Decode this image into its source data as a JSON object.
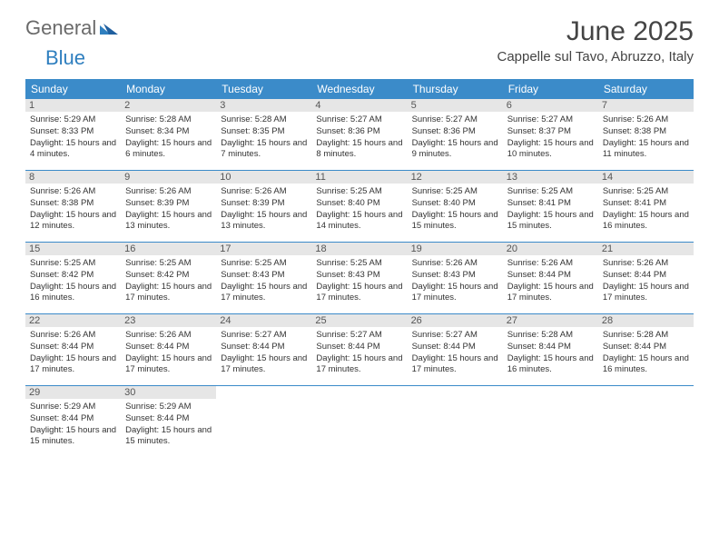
{
  "logo": {
    "text1": "General",
    "text2": "Blue"
  },
  "title": "June 2025",
  "location": "Cappelle sul Tavo, Abruzzo, Italy",
  "colors": {
    "header_bg": "#3b8bc9",
    "header_text": "#ffffff",
    "daynum_bg": "#e6e6e6",
    "week_border": "#3b8bc9",
    "logo_general": "#6a6a6a",
    "logo_blue": "#2f7fbf"
  },
  "day_labels": [
    "Sunday",
    "Monday",
    "Tuesday",
    "Wednesday",
    "Thursday",
    "Friday",
    "Saturday"
  ],
  "weeks": [
    [
      {
        "n": "1",
        "sr": "Sunrise: 5:29 AM",
        "ss": "Sunset: 8:33 PM",
        "dl": "Daylight: 15 hours and 4 minutes."
      },
      {
        "n": "2",
        "sr": "Sunrise: 5:28 AM",
        "ss": "Sunset: 8:34 PM",
        "dl": "Daylight: 15 hours and 6 minutes."
      },
      {
        "n": "3",
        "sr": "Sunrise: 5:28 AM",
        "ss": "Sunset: 8:35 PM",
        "dl": "Daylight: 15 hours and 7 minutes."
      },
      {
        "n": "4",
        "sr": "Sunrise: 5:27 AM",
        "ss": "Sunset: 8:36 PM",
        "dl": "Daylight: 15 hours and 8 minutes."
      },
      {
        "n": "5",
        "sr": "Sunrise: 5:27 AM",
        "ss": "Sunset: 8:36 PM",
        "dl": "Daylight: 15 hours and 9 minutes."
      },
      {
        "n": "6",
        "sr": "Sunrise: 5:27 AM",
        "ss": "Sunset: 8:37 PM",
        "dl": "Daylight: 15 hours and 10 minutes."
      },
      {
        "n": "7",
        "sr": "Sunrise: 5:26 AM",
        "ss": "Sunset: 8:38 PM",
        "dl": "Daylight: 15 hours and 11 minutes."
      }
    ],
    [
      {
        "n": "8",
        "sr": "Sunrise: 5:26 AM",
        "ss": "Sunset: 8:38 PM",
        "dl": "Daylight: 15 hours and 12 minutes."
      },
      {
        "n": "9",
        "sr": "Sunrise: 5:26 AM",
        "ss": "Sunset: 8:39 PM",
        "dl": "Daylight: 15 hours and 13 minutes."
      },
      {
        "n": "10",
        "sr": "Sunrise: 5:26 AM",
        "ss": "Sunset: 8:39 PM",
        "dl": "Daylight: 15 hours and 13 minutes."
      },
      {
        "n": "11",
        "sr": "Sunrise: 5:25 AM",
        "ss": "Sunset: 8:40 PM",
        "dl": "Daylight: 15 hours and 14 minutes."
      },
      {
        "n": "12",
        "sr": "Sunrise: 5:25 AM",
        "ss": "Sunset: 8:40 PM",
        "dl": "Daylight: 15 hours and 15 minutes."
      },
      {
        "n": "13",
        "sr": "Sunrise: 5:25 AM",
        "ss": "Sunset: 8:41 PM",
        "dl": "Daylight: 15 hours and 15 minutes."
      },
      {
        "n": "14",
        "sr": "Sunrise: 5:25 AM",
        "ss": "Sunset: 8:41 PM",
        "dl": "Daylight: 15 hours and 16 minutes."
      }
    ],
    [
      {
        "n": "15",
        "sr": "Sunrise: 5:25 AM",
        "ss": "Sunset: 8:42 PM",
        "dl": "Daylight: 15 hours and 16 minutes."
      },
      {
        "n": "16",
        "sr": "Sunrise: 5:25 AM",
        "ss": "Sunset: 8:42 PM",
        "dl": "Daylight: 15 hours and 17 minutes."
      },
      {
        "n": "17",
        "sr": "Sunrise: 5:25 AM",
        "ss": "Sunset: 8:43 PM",
        "dl": "Daylight: 15 hours and 17 minutes."
      },
      {
        "n": "18",
        "sr": "Sunrise: 5:25 AM",
        "ss": "Sunset: 8:43 PM",
        "dl": "Daylight: 15 hours and 17 minutes."
      },
      {
        "n": "19",
        "sr": "Sunrise: 5:26 AM",
        "ss": "Sunset: 8:43 PM",
        "dl": "Daylight: 15 hours and 17 minutes."
      },
      {
        "n": "20",
        "sr": "Sunrise: 5:26 AM",
        "ss": "Sunset: 8:44 PM",
        "dl": "Daylight: 15 hours and 17 minutes."
      },
      {
        "n": "21",
        "sr": "Sunrise: 5:26 AM",
        "ss": "Sunset: 8:44 PM",
        "dl": "Daylight: 15 hours and 17 minutes."
      }
    ],
    [
      {
        "n": "22",
        "sr": "Sunrise: 5:26 AM",
        "ss": "Sunset: 8:44 PM",
        "dl": "Daylight: 15 hours and 17 minutes."
      },
      {
        "n": "23",
        "sr": "Sunrise: 5:26 AM",
        "ss": "Sunset: 8:44 PM",
        "dl": "Daylight: 15 hours and 17 minutes."
      },
      {
        "n": "24",
        "sr": "Sunrise: 5:27 AM",
        "ss": "Sunset: 8:44 PM",
        "dl": "Daylight: 15 hours and 17 minutes."
      },
      {
        "n": "25",
        "sr": "Sunrise: 5:27 AM",
        "ss": "Sunset: 8:44 PM",
        "dl": "Daylight: 15 hours and 17 minutes."
      },
      {
        "n": "26",
        "sr": "Sunrise: 5:27 AM",
        "ss": "Sunset: 8:44 PM",
        "dl": "Daylight: 15 hours and 17 minutes."
      },
      {
        "n": "27",
        "sr": "Sunrise: 5:28 AM",
        "ss": "Sunset: 8:44 PM",
        "dl": "Daylight: 15 hours and 16 minutes."
      },
      {
        "n": "28",
        "sr": "Sunrise: 5:28 AM",
        "ss": "Sunset: 8:44 PM",
        "dl": "Daylight: 15 hours and 16 minutes."
      }
    ],
    [
      {
        "n": "29",
        "sr": "Sunrise: 5:29 AM",
        "ss": "Sunset: 8:44 PM",
        "dl": "Daylight: 15 hours and 15 minutes."
      },
      {
        "n": "30",
        "sr": "Sunrise: 5:29 AM",
        "ss": "Sunset: 8:44 PM",
        "dl": "Daylight: 15 hours and 15 minutes."
      },
      {
        "n": "",
        "sr": "",
        "ss": "",
        "dl": "",
        "empty": true
      },
      {
        "n": "",
        "sr": "",
        "ss": "",
        "dl": "",
        "empty": true
      },
      {
        "n": "",
        "sr": "",
        "ss": "",
        "dl": "",
        "empty": true
      },
      {
        "n": "",
        "sr": "",
        "ss": "",
        "dl": "",
        "empty": true
      },
      {
        "n": "",
        "sr": "",
        "ss": "",
        "dl": "",
        "empty": true
      }
    ]
  ]
}
